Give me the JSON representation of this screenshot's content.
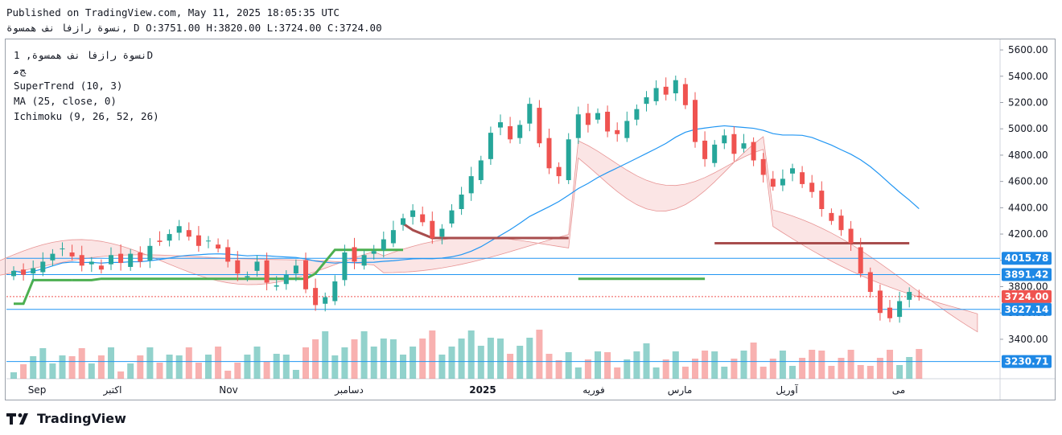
{
  "header": {
    "published": "Published on TradingView.com, May 11, 2025 18:05:35 UTC",
    "symbol_line": "نسوة رازفا نف همسوة, D O:3751.00 H:3820.00 L:3724.00 C:3724.00"
  },
  "legend": {
    "symbol": "نسوة رازفا نف همسوة, 1D",
    "exchange": "ﺞﻣ",
    "indicators": [
      "SuperTrend (10, 3)",
      "MA (25, close, 0)",
      "Ichimoku (9, 26, 52, 26)"
    ]
  },
  "brand": {
    "name": "TradingView",
    "icon": "tradingview-logo-icon"
  },
  "colors": {
    "up": "#26a69a",
    "down": "#ef5350",
    "supertrend_up": "#4caf50",
    "supertrend_down": "#a84d4d",
    "ma": "#2196f3",
    "cloud_bull": "#a5d6a7",
    "cloud_bear": "#f8bbd0"
  },
  "chart_data": {
    "type": "candlestick",
    "y_axis": {
      "ylim": [
        3100,
        5680
      ],
      "ticks": [
        3400,
        3600,
        3800,
        4000,
        4200,
        4400,
        4600,
        4800,
        5000,
        5200,
        5400,
        5600
      ],
      "tick_labels": [
        "3400.00",
        "3600.00",
        "3800.00",
        "4000.00",
        "4200.00",
        "4400.00",
        "4600.00",
        "4800.00",
        "5000.00",
        "5200.00",
        "5400.00",
        "5600.00"
      ]
    },
    "x_axis": {
      "labels": [
        "Sep",
        "اكتبر",
        "Nov",
        "دسامبر",
        "2025",
        "فوريه",
        "مارس",
        "آوريل",
        "مى"
      ]
    },
    "price_labels": [
      {
        "value": 4015.78,
        "text": "4015.78",
        "kind": "level"
      },
      {
        "value": 3891.42,
        "text": "3891.42",
        "kind": "level"
      },
      {
        "value": 3724.0,
        "text": "3724.00",
        "kind": "last"
      },
      {
        "value": 3627.14,
        "text": "3627.14",
        "kind": "level"
      },
      {
        "value": 3230.71,
        "text": "3230.71",
        "kind": "level"
      }
    ],
    "ohlc_last": {
      "open": 3751.0,
      "high": 3820.0,
      "low": 3724.0,
      "close": 3724.0
    },
    "supertrend": [
      {
        "from": 0,
        "to": 6,
        "dir": "up",
        "values": [
          3670,
          3670,
          3850,
          3850,
          3850,
          3850,
          3850
        ]
      },
      {
        "from": 6,
        "to": 40,
        "dir": "up",
        "values": [
          3850,
          3850,
          3850,
          3860,
          3860,
          3860,
          3860,
          3860,
          3860,
          3860,
          3860,
          3860,
          3860,
          3860,
          3860,
          3860,
          3860,
          3860,
          3860,
          3860,
          3860,
          3860,
          3860,
          3860,
          3860,
          3900,
          3990,
          4080,
          4080,
          4080,
          4080,
          4080,
          4080,
          4080,
          4080
        ]
      },
      {
        "from": 40,
        "to": 58,
        "dir": "down",
        "values": [
          4280,
          4230,
          4200,
          4170,
          4170,
          4170,
          4170,
          4170,
          4170,
          4170,
          4170,
          4170,
          4170,
          4170,
          4170,
          4170,
          4170,
          4170
        ]
      },
      {
        "from": 58,
        "to": 72,
        "dir": "up",
        "values": [
          3860,
          3860,
          3860,
          3860,
          3860,
          3860,
          3860,
          3860,
          3860,
          3860,
          3860,
          3860,
          3860,
          3860
        ]
      },
      {
        "from": 72,
        "to": 93,
        "dir": "down",
        "values": [
          4130,
          4130,
          4130,
          4130,
          4130,
          4130,
          4130,
          4130,
          4130,
          4130,
          4130,
          4130,
          4130,
          4130,
          4130,
          4130,
          4130,
          4130,
          4130,
          4130,
          4130
        ]
      }
    ],
    "candles_note": "Daily candles, approx. late Aug 2024 to May 9 2025"
  }
}
